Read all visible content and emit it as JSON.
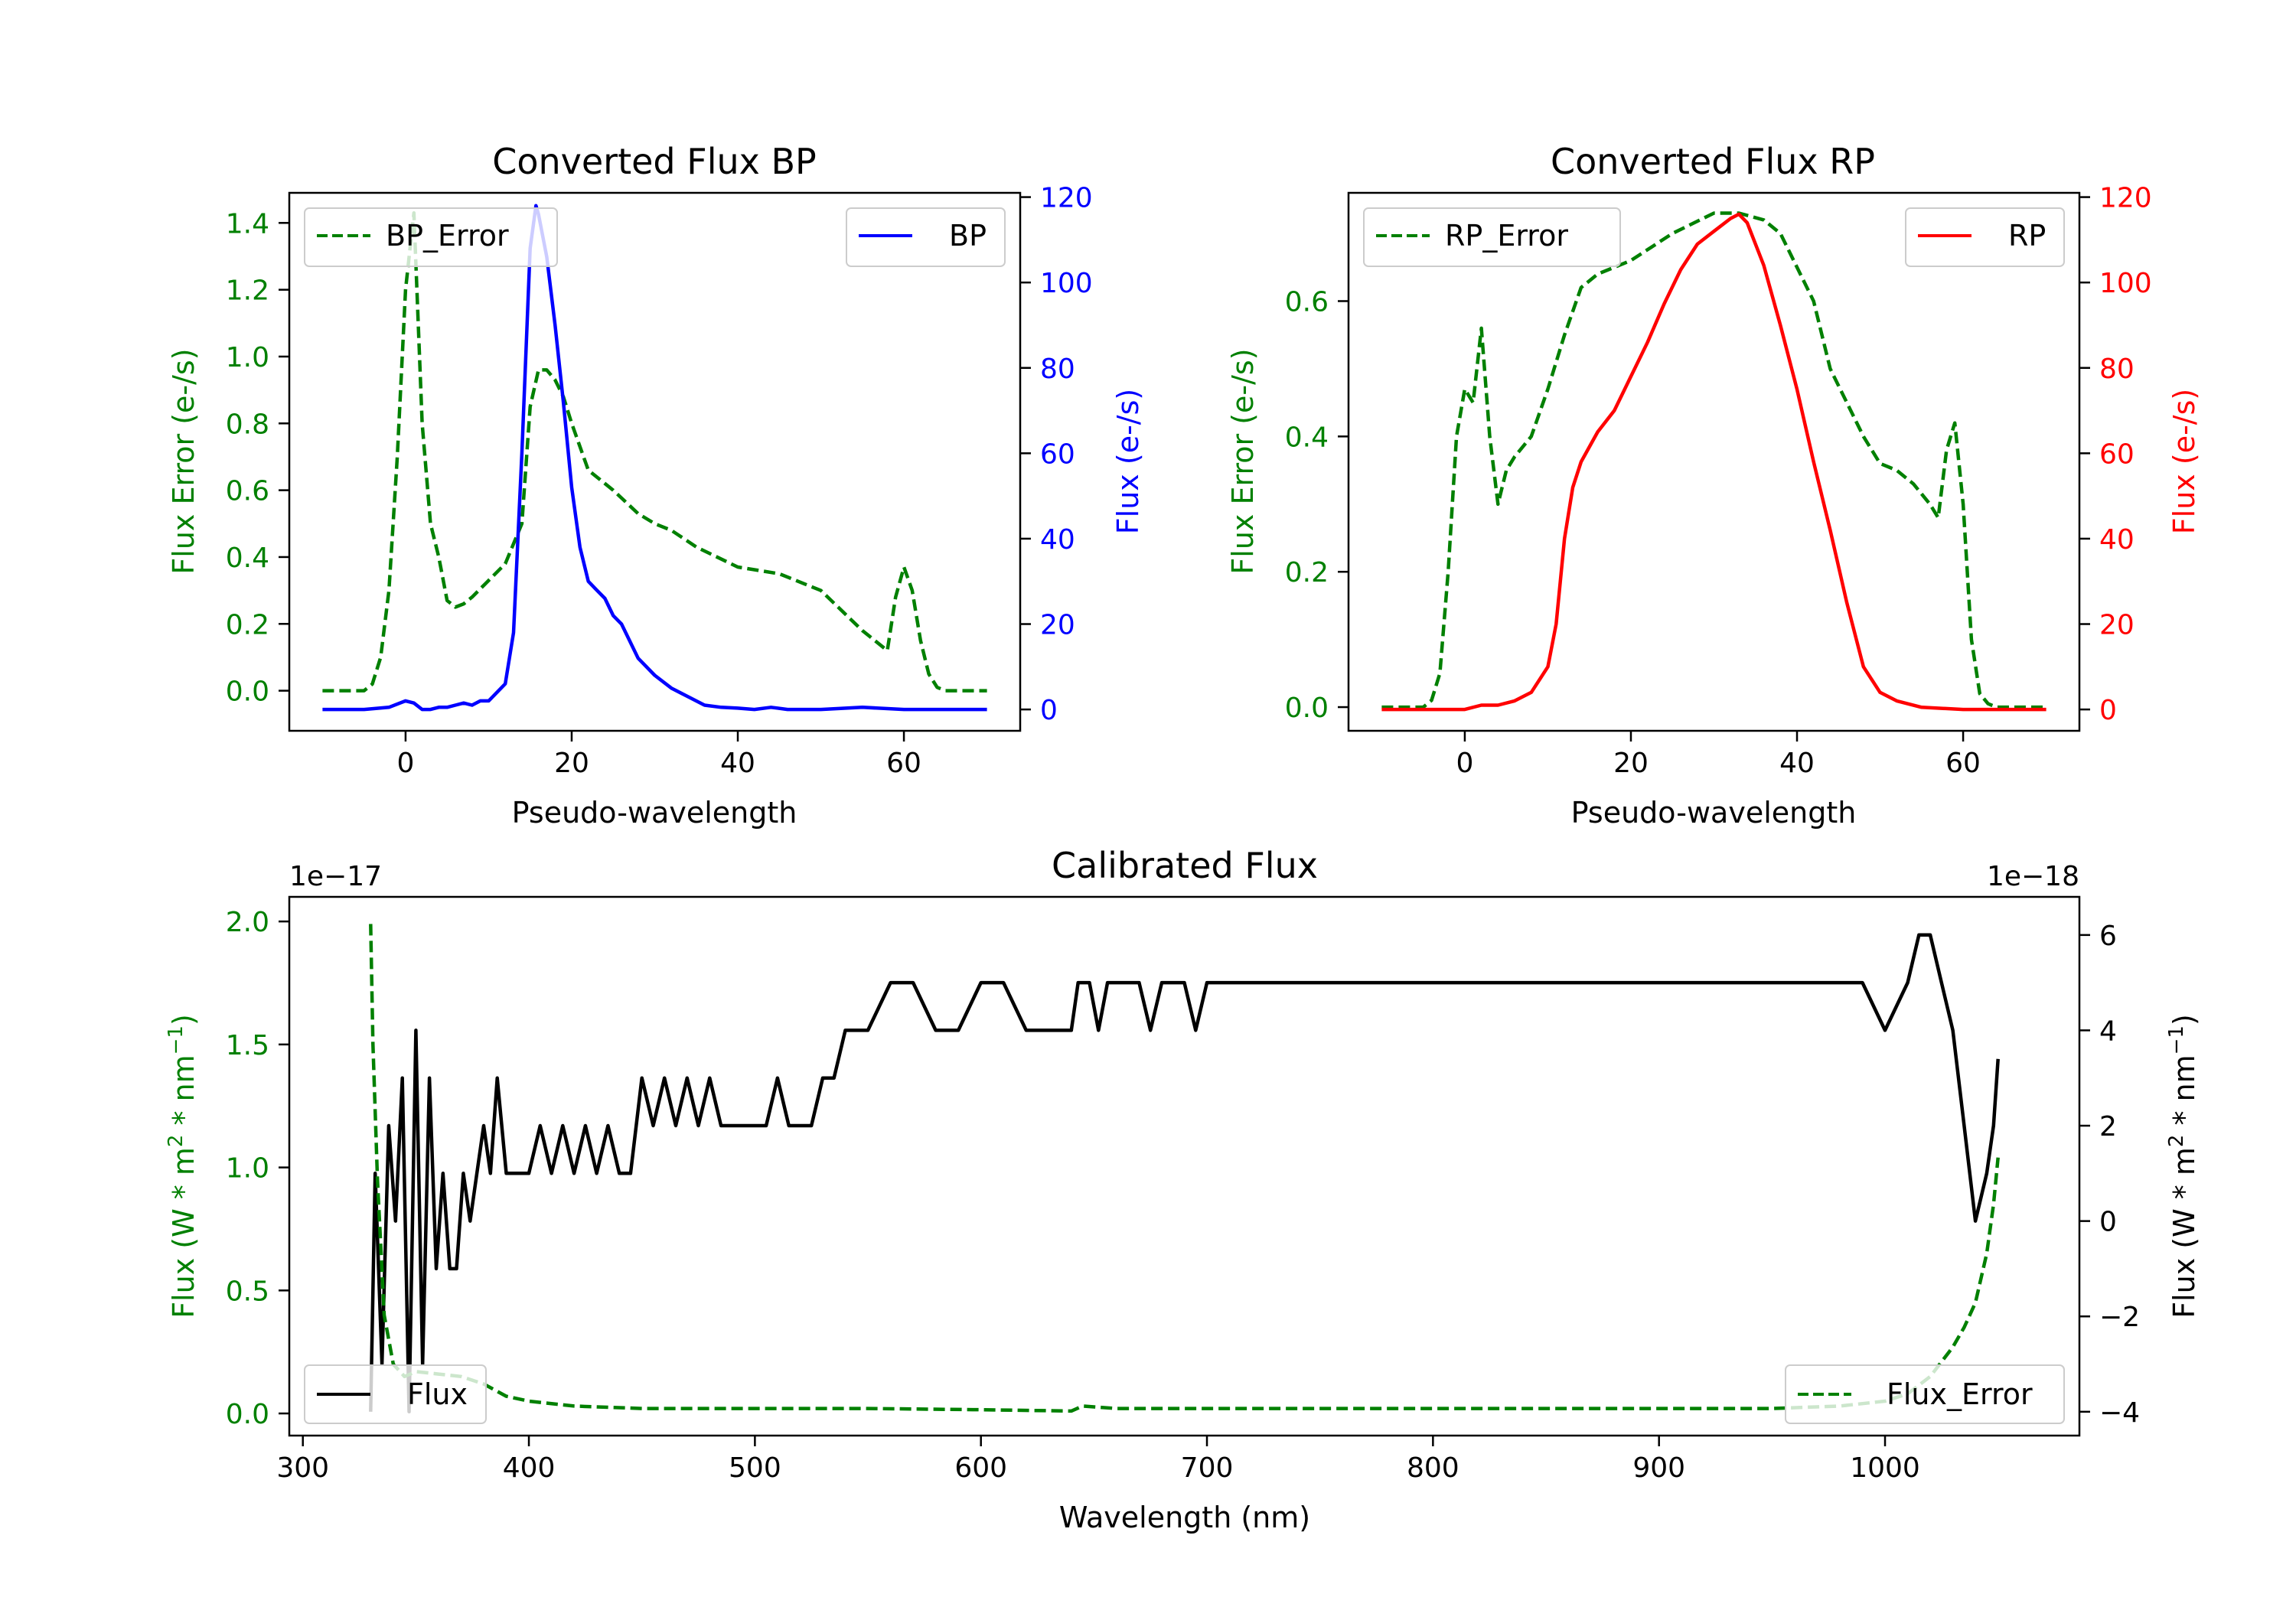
{
  "chart_data": [
    {
      "type": "line",
      "title": "Converted Flux BP",
      "xlabel": "Pseudo-wavelength",
      "ylabel_left": "Flux Error (e-/s)",
      "ylabel_right": "Flux (e-/s)",
      "xlim": [
        -14,
        74
      ],
      "ylim_left": [
        -0.12,
        1.49
      ],
      "ylim_right": [
        -5,
        121
      ],
      "xticks": [
        "0",
        "20",
        "40",
        "60"
      ],
      "yticks_left": [
        "0.0",
        "0.2",
        "0.4",
        "0.6",
        "0.8",
        "1.0",
        "1.2",
        "1.4"
      ],
      "yticks_right": [
        "0",
        "20",
        "40",
        "60",
        "80",
        "100",
        "120"
      ],
      "colors": {
        "error": "#008000",
        "flux": "#0000ff",
        "left_axis": "#008000",
        "right_axis": "#0000ff"
      },
      "series": [
        {
          "name": "BP_Error",
          "axis": "left",
          "style": "dashed",
          "color": "#008000",
          "x": [
            -10,
            -5,
            -4,
            -3,
            -2,
            -1,
            0,
            1,
            2,
            3,
            4,
            5,
            6,
            7,
            8,
            10,
            12,
            14,
            15,
            16,
            17,
            18,
            19,
            20,
            22,
            25,
            28,
            30,
            32,
            35,
            40,
            45,
            50,
            55,
            58,
            59,
            60,
            61,
            62,
            63,
            64,
            65,
            70
          ],
          "y": [
            0,
            0,
            0.02,
            0.1,
            0.3,
            0.7,
            1.2,
            1.43,
            0.8,
            0.5,
            0.4,
            0.27,
            0.25,
            0.26,
            0.28,
            0.33,
            0.38,
            0.5,
            0.85,
            0.96,
            0.96,
            0.93,
            0.88,
            0.8,
            0.66,
            0.6,
            0.53,
            0.5,
            0.48,
            0.43,
            0.37,
            0.35,
            0.3,
            0.18,
            0.12,
            0.28,
            0.37,
            0.3,
            0.15,
            0.05,
            0.01,
            0,
            0
          ]
        },
        {
          "name": "BP",
          "axis": "right",
          "style": "solid",
          "color": "#0000ff",
          "x": [
            -10,
            -5,
            -2,
            0,
            1,
            2,
            3,
            4,
            5,
            6,
            7,
            8,
            9,
            10,
            11,
            12,
            13,
            14,
            15,
            15.7,
            16,
            17,
            18,
            19,
            20,
            21,
            22,
            23,
            24,
            25,
            26,
            28,
            30,
            32,
            34,
            36,
            38,
            40,
            42,
            44,
            46,
            50,
            55,
            60,
            65,
            70
          ],
          "y": [
            0,
            0,
            0.5,
            2,
            1.5,
            0,
            0,
            0.5,
            0.5,
            1,
            1.5,
            1,
            2,
            2,
            4,
            6,
            18,
            60,
            108,
            118,
            116,
            106,
            90,
            72,
            52,
            38,
            30,
            28,
            26,
            22,
            20,
            12,
            8,
            5,
            3,
            1,
            0.5,
            0.3,
            0,
            0.5,
            0,
            0,
            0.5,
            0,
            0,
            0
          ]
        }
      ],
      "legend": [
        {
          "label": "BP_Error",
          "location": "upper-left"
        },
        {
          "label": "BP",
          "location": "upper-right"
        }
      ]
    },
    {
      "type": "line",
      "title": "Converted Flux RP",
      "xlabel": "Pseudo-wavelength",
      "ylabel_left": "Flux Error (e-/s)",
      "ylabel_right": "Flux (e-/s)",
      "xlim": [
        -14,
        74
      ],
      "ylim_left": [
        -0.035,
        0.76
      ],
      "ylim_right": [
        -5,
        121
      ],
      "xticks": [
        "0",
        "20",
        "40",
        "60"
      ],
      "yticks_left": [
        "0.0",
        "0.2",
        "0.4",
        "0.6"
      ],
      "yticks_right": [
        "0",
        "20",
        "40",
        "60",
        "80",
        "100",
        "120"
      ],
      "colors": {
        "error": "#008000",
        "flux": "#ff0000",
        "left_axis": "#008000",
        "right_axis": "#ff0000"
      },
      "series": [
        {
          "name": "RP_Error",
          "axis": "left",
          "style": "dashed",
          "color": "#008000",
          "x": [
            -10,
            -5,
            -4,
            -3,
            -2,
            -1,
            0,
            1,
            2,
            3,
            4,
            5,
            6,
            8,
            10,
            12,
            14,
            16,
            18,
            20,
            25,
            30,
            33,
            36,
            38,
            40,
            42,
            44,
            46,
            48,
            50,
            52,
            54,
            56,
            57,
            58,
            59,
            60,
            61,
            62,
            63,
            64,
            65,
            70
          ],
          "y": [
            0,
            0,
            0.01,
            0.05,
            0.2,
            0.4,
            0.47,
            0.45,
            0.56,
            0.4,
            0.3,
            0.35,
            0.37,
            0.4,
            0.47,
            0.55,
            0.62,
            0.64,
            0.65,
            0.66,
            0.7,
            0.73,
            0.73,
            0.72,
            0.7,
            0.65,
            0.6,
            0.5,
            0.45,
            0.4,
            0.36,
            0.35,
            0.33,
            0.3,
            0.28,
            0.38,
            0.42,
            0.3,
            0.1,
            0.02,
            0.005,
            0,
            0,
            0
          ]
        },
        {
          "name": "RP",
          "axis": "right",
          "style": "solid",
          "color": "#ff0000",
          "x": [
            -10,
            -5,
            -2,
            0,
            2,
            4,
            6,
            8,
            10,
            11,
            12,
            13,
            14,
            16,
            18,
            20,
            22,
            24,
            26,
            28,
            30,
            32,
            33,
            34,
            36,
            38,
            40,
            42,
            44,
            46,
            48,
            50,
            52,
            55,
            60,
            65,
            70
          ],
          "y": [
            0,
            0,
            0,
            0,
            1,
            1,
            2,
            4,
            10,
            20,
            40,
            52,
            58,
            65,
            70,
            78,
            86,
            95,
            103,
            109,
            112,
            115,
            116,
            114,
            104,
            90,
            75,
            58,
            42,
            25,
            10,
            4,
            2,
            0.5,
            0,
            0,
            0
          ]
        }
      ],
      "legend": [
        {
          "label": "RP_Error",
          "location": "upper-left"
        },
        {
          "label": "RP",
          "location": "upper-right"
        }
      ]
    },
    {
      "type": "line",
      "title": "Calibrated Flux",
      "xlabel": "Wavelength (nm)",
      "ylabel_left": "Flux (W * m$^2$ * nm$^{-1}$)",
      "ylabel_right": "Flux (W * m$^2$ * nm$^{-1}$)",
      "offset_left": "1e−17",
      "offset_right": "1e−18",
      "xlim": [
        294,
        1086
      ],
      "ylim_left": [
        -0.09,
        2.1
      ],
      "ylim_right": [
        -4.5,
        6.8
      ],
      "xticks": [
        "300",
        "400",
        "500",
        "600",
        "700",
        "800",
        "900",
        "1000"
      ],
      "yticks_left": [
        "0.0",
        "0.5",
        "1.0",
        "1.5",
        "2.0"
      ],
      "yticks_right": [
        "−4",
        "−2",
        "0",
        "2",
        "4",
        "6"
      ],
      "colors": {
        "error": "#008000",
        "flux": "#000000",
        "left_axis": "#008000",
        "right_axis": "#000000"
      },
      "series": [
        {
          "name": "Flux",
          "axis": "right",
          "style": "solid",
          "color": "#000000",
          "x": [
            330,
            332,
            335,
            338,
            341,
            344,
            347,
            350,
            353,
            356,
            359,
            362,
            365,
            368,
            371,
            374,
            377,
            380,
            383,
            386,
            390,
            395,
            400,
            405,
            410,
            415,
            420,
            425,
            430,
            435,
            440,
            445,
            450,
            455,
            460,
            465,
            470,
            475,
            480,
            485,
            490,
            495,
            500,
            505,
            510,
            515,
            520,
            525,
            530,
            535,
            540,
            545,
            550,
            560,
            570,
            580,
            590,
            600,
            605,
            610,
            620,
            630,
            640,
            643,
            648,
            652,
            656,
            660,
            665,
            670,
            675,
            680,
            685,
            690,
            695,
            700,
            710,
            720,
            730,
            740,
            750,
            760,
            770,
            780,
            790,
            800,
            810,
            820,
            830,
            840,
            850,
            860,
            870,
            880,
            890,
            900,
            910,
            920,
            930,
            940,
            950,
            960,
            970,
            980,
            990,
            1000,
            1010,
            1015,
            1020,
            1025,
            1030,
            1035,
            1040,
            1045,
            1048,
            1050
          ],
          "y": [
            -4,
            1,
            -3,
            2,
            0,
            3,
            -4,
            4,
            -3,
            3,
            -1,
            1,
            -1,
            -1,
            1,
            0,
            1,
            2,
            1,
            3,
            1,
            1,
            1,
            2,
            1,
            2,
            1,
            2,
            1,
            2,
            1,
            1,
            3,
            2,
            3,
            2,
            3,
            2,
            3,
            2,
            2,
            2,
            2,
            2,
            3,
            2,
            2,
            2,
            3,
            3,
            4,
            4,
            4,
            5,
            5,
            4,
            4,
            5,
            5,
            5,
            4,
            4,
            4,
            5,
            5,
            4,
            5,
            5,
            5,
            5,
            4,
            5,
            5,
            5,
            4,
            5,
            5,
            5,
            5,
            5,
            5,
            5,
            5,
            5,
            5,
            5,
            5,
            5,
            5,
            5,
            5,
            5,
            5,
            5,
            5,
            5,
            5,
            5,
            5,
            5,
            5,
            5,
            5,
            5,
            5,
            4,
            5,
            6,
            6,
            5,
            4,
            2,
            0,
            1,
            2,
            3.4
          ]
        },
        {
          "name": "Flux_Error",
          "axis": "left",
          "style": "dashed",
          "color": "#008000",
          "x": [
            330,
            331,
            333,
            336,
            340,
            345,
            350,
            360,
            370,
            380,
            390,
            400,
            420,
            450,
            500,
            550,
            600,
            640,
            645,
            660,
            700,
            750,
            800,
            850,
            900,
            950,
            980,
            1000,
            1010,
            1020,
            1030,
            1035,
            1040,
            1045,
            1048,
            1050
          ],
          "y": [
            1.99,
            1.5,
            0.95,
            0.4,
            0.2,
            0.15,
            0.17,
            0.16,
            0.15,
            0.12,
            0.07,
            0.05,
            0.03,
            0.02,
            0.02,
            0.02,
            0.015,
            0.01,
            0.03,
            0.02,
            0.02,
            0.02,
            0.02,
            0.02,
            0.02,
            0.02,
            0.03,
            0.05,
            0.08,
            0.15,
            0.27,
            0.35,
            0.45,
            0.65,
            0.85,
            1.04
          ]
        }
      ],
      "legend": [
        {
          "label": "Flux",
          "location": "lower-left"
        },
        {
          "label": "Flux_Error",
          "location": "lower-right"
        }
      ]
    }
  ]
}
